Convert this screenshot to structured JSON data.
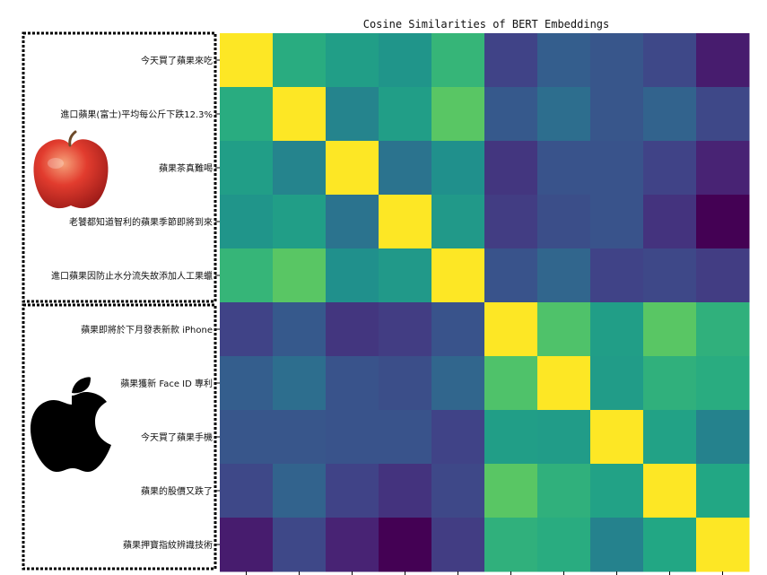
{
  "chart_data": {
    "type": "heatmap",
    "title": "Cosine Similarities of BERT Embeddings",
    "row_labels": [
      "今天買了蘋果來吃",
      "進口蘋果(富士)平均每公斤下跌12.3%",
      "蘋果茶真難喝",
      "老饕都知道智利的蘋果季節即將到來",
      "進口蘋果因防止水分流失故添加人工果蠟",
      "蘋果即將於下月發表新款 iPhone",
      "蘋果獲新 Face ID 專利",
      "今天買了蘋果手機",
      "蘋果的股價又跌了",
      "蘋果押寶指紋辨識技術"
    ],
    "col_labels": [],
    "colormap": "viridis",
    "values": [
      [
        1.0,
        0.62,
        0.56,
        0.52,
        0.66,
        0.2,
        0.3,
        0.27,
        0.22,
        0.08
      ],
      [
        0.62,
        1.0,
        0.45,
        0.56,
        0.74,
        0.28,
        0.36,
        0.27,
        0.32,
        0.22
      ],
      [
        0.56,
        0.45,
        1.0,
        0.38,
        0.5,
        0.16,
        0.26,
        0.26,
        0.2,
        0.1
      ],
      [
        0.52,
        0.56,
        0.38,
        1.0,
        0.54,
        0.18,
        0.24,
        0.26,
        0.15,
        0.0
      ],
      [
        0.66,
        0.74,
        0.5,
        0.54,
        1.0,
        0.26,
        0.33,
        0.2,
        0.22,
        0.18
      ],
      [
        0.2,
        0.28,
        0.16,
        0.18,
        0.26,
        1.0,
        0.72,
        0.56,
        0.74,
        0.64
      ],
      [
        0.3,
        0.36,
        0.26,
        0.24,
        0.33,
        0.72,
        1.0,
        0.55,
        0.64,
        0.62
      ],
      [
        0.27,
        0.27,
        0.26,
        0.26,
        0.2,
        0.56,
        0.55,
        1.0,
        0.58,
        0.44
      ],
      [
        0.22,
        0.32,
        0.2,
        0.15,
        0.22,
        0.74,
        0.64,
        0.58,
        1.0,
        0.6
      ],
      [
        0.08,
        0.22,
        0.1,
        0.0,
        0.18,
        0.64,
        0.62,
        0.44,
        0.6,
        1.0
      ]
    ],
    "value_range": [
      0,
      1
    ],
    "groups": [
      {
        "icon": "red-apple-fruit-icon",
        "rows": [
          0,
          4
        ]
      },
      {
        "icon": "apple-logo-icon",
        "rows": [
          5,
          9
        ]
      }
    ]
  }
}
